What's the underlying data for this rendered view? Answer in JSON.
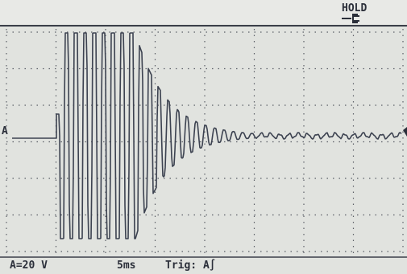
{
  "screen": {
    "hold": "HOLD",
    "channel_marker": "A",
    "status": {
      "scale": "A=20 V",
      "timebase": "5ms",
      "trigger": "Trig: A∫"
    }
  }
}
